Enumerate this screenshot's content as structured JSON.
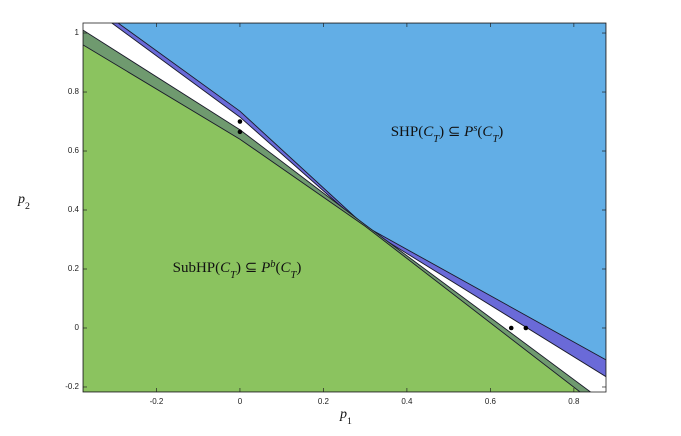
{
  "chart_data": {
    "type": "region",
    "xlim": [
      -0.376,
      0.877
    ],
    "ylim": [
      -0.217,
      1.034
    ],
    "xticks": [
      -0.2,
      0,
      0.2,
      0.4,
      0.6,
      0.8
    ],
    "yticks": [
      -0.2,
      0,
      0.2,
      0.4,
      0.6,
      0.8,
      1
    ],
    "grid": false,
    "x_label": [
      {
        "text": "p",
        "italic": true,
        "shift": "none"
      },
      {
        "text": "1",
        "italic": false,
        "shift": "sub"
      }
    ],
    "y_label": [
      {
        "text": "p",
        "italic": true,
        "shift": "none"
      },
      {
        "text": "2",
        "italic": false,
        "shift": "sub"
      }
    ],
    "regions": [
      {
        "color": "#6a6ad8",
        "x": [
          -0.307,
          0,
          0.3,
          0.877,
          0.877
        ],
        "y": [
          1.034,
          0.715,
          0.34,
          -0.165,
          1.034
        ]
      },
      {
        "color": "#62aee6",
        "x": [
          -0.292,
          0,
          0.3,
          0.877,
          0.877
        ],
        "y": [
          1.034,
          0.735,
          0.345,
          -0.108,
          1.034
        ]
      },
      {
        "color": "#6f9a6f",
        "x": [
          -0.376,
          0,
          0.3,
          0.84,
          -0.376
        ],
        "y": [
          1.01,
          0.672,
          0.35,
          -0.217,
          -0.217
        ]
      },
      {
        "color": "#8bc35f",
        "x": [
          -0.376,
          0,
          0.3,
          0.815,
          -0.376
        ],
        "y": [
          0.96,
          0.64,
          0.345,
          -0.217,
          -0.217
        ]
      }
    ],
    "points": {
      "color": "#000000",
      "x": [
        0,
        0,
        0.65,
        0.685
      ],
      "y": [
        0.7,
        0.665,
        0,
        0
      ]
    },
    "annotations": [
      {
        "parts": [
          {
            "text": "SHP(",
            "italic": false,
            "shift": "none"
          },
          {
            "text": "C",
            "italic": true,
            "shift": "none"
          },
          {
            "text": "T",
            "italic": true,
            "shift": "sub"
          },
          {
            "text": ") ⊆ ",
            "italic": false,
            "shift": "none"
          },
          {
            "text": "P",
            "italic": true,
            "shift": "none"
          },
          {
            "text": "s",
            "italic": true,
            "shift": "super"
          },
          {
            "text": "(",
            "italic": false,
            "shift": "none"
          },
          {
            "text": "C",
            "italic": true,
            "shift": "none"
          },
          {
            "text": "T",
            "italic": true,
            "shift": "sub"
          },
          {
            "text": ")",
            "italic": false,
            "shift": "none"
          }
        ]
      },
      {
        "parts": [
          {
            "text": "SubHP(",
            "italic": false,
            "shift": "none"
          },
          {
            "text": "C",
            "italic": true,
            "shift": "none"
          },
          {
            "text": "T",
            "italic": true,
            "shift": "sub"
          },
          {
            "text": ") ⊆ ",
            "italic": false,
            "shift": "none"
          },
          {
            "text": "P",
            "italic": true,
            "shift": "none"
          },
          {
            "text": "b",
            "italic": true,
            "shift": "super"
          },
          {
            "text": "(",
            "italic": false,
            "shift": "none"
          },
          {
            "text": "C",
            "italic": true,
            "shift": "none"
          },
          {
            "text": "T",
            "italic": true,
            "shift": "sub"
          },
          {
            "text": ")",
            "italic": false,
            "shift": "none"
          }
        ]
      }
    ]
  }
}
